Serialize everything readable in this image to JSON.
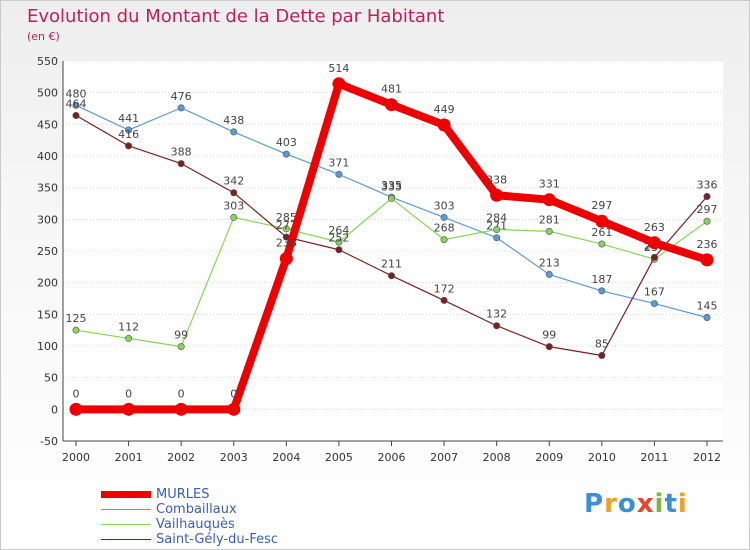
{
  "title": "Evolution du Montant de la Dette par Habitant",
  "subtitle": "(en €)",
  "logo": {
    "text": "Proxiti",
    "colors": [
      "#3a8fd6",
      "#f0a020",
      "#3a8fd6",
      "#e8442a",
      "#78b83a",
      "#3a8fd6",
      "#f0a020"
    ]
  },
  "chart_data": {
    "type": "line",
    "title": "Evolution du Montant de la Dette par Habitant",
    "subtitle": "(en €)",
    "xlabel": "",
    "ylabel": "",
    "ylim": [
      -50,
      550
    ],
    "yticks": [
      "550",
      "500",
      "450",
      "400",
      "350",
      "300",
      "250",
      "200",
      "150",
      "100",
      "50",
      "0",
      "-50"
    ],
    "x": [
      "2000",
      "2001",
      "2002",
      "2003",
      "2004",
      "2005",
      "2006",
      "2007",
      "2008",
      "2009",
      "2010",
      "2011",
      "2012"
    ],
    "grid": "horizontal",
    "legend_position": "bottom-left",
    "series": [
      {
        "name": "MURLES",
        "color": "#ee0000",
        "values": [
          0,
          0,
          0,
          0,
          238,
          514,
          481,
          449,
          338,
          331,
          297,
          263,
          236
        ]
      },
      {
        "name": "Combaillaux",
        "color": "#5b9bd5",
        "values": [
          480,
          441,
          476,
          438,
          403,
          371,
          335,
          303,
          271,
          213,
          187,
          167,
          145
        ]
      },
      {
        "name": "Vailhauquès",
        "color": "#88d45a",
        "values": [
          125,
          112,
          99,
          303,
          285,
          264,
          333,
          268,
          284,
          281,
          261,
          237,
          297
        ]
      },
      {
        "name": "Saint-Gély-du-Fesc",
        "color": "#7a1f22",
        "values": [
          464,
          416,
          388,
          342,
          272,
          252,
          211,
          172,
          132,
          99,
          85,
          240,
          336
        ]
      }
    ]
  }
}
